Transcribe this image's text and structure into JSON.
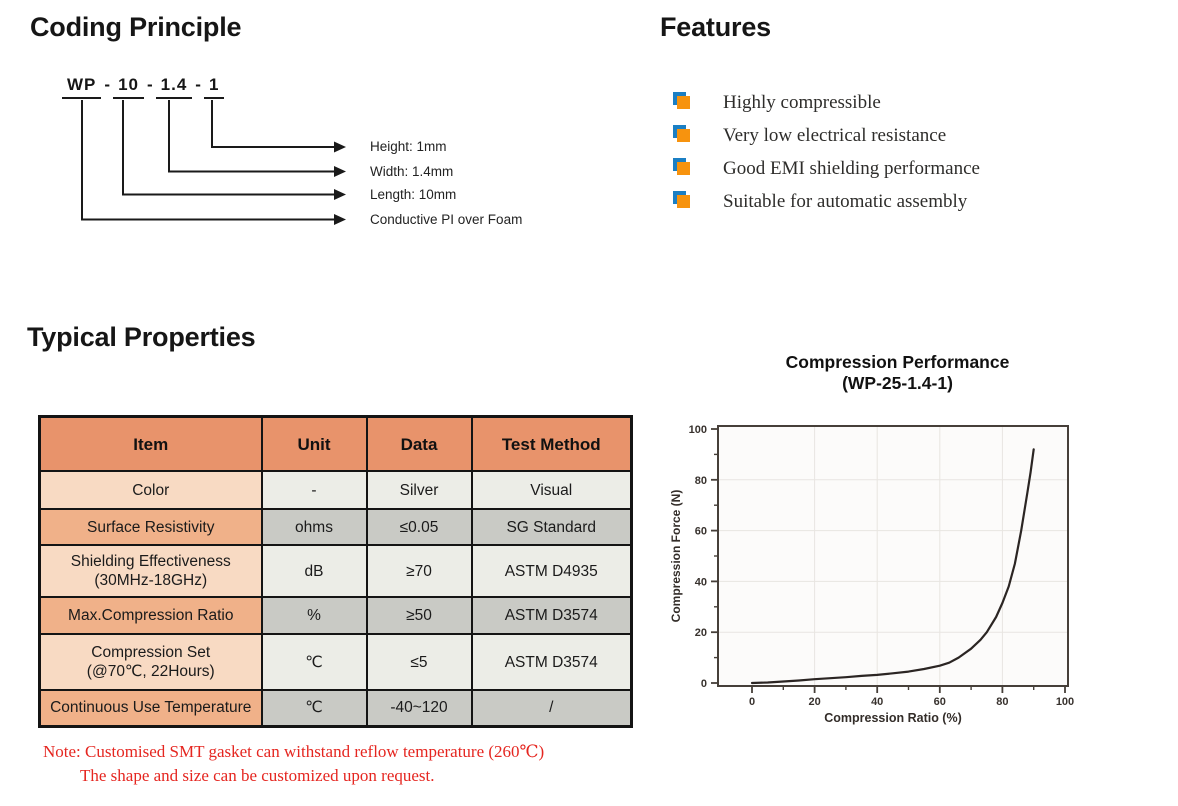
{
  "coding": {
    "title": "Coding Principle",
    "code_parts": [
      "WP",
      "10",
      "1.4",
      "1"
    ],
    "separator": "-",
    "labels": [
      "Height: 1mm",
      "Width: 1.4mm",
      "Length: 10mm",
      "Conductive PI over Foam"
    ]
  },
  "features": {
    "title": "Features",
    "items": [
      "Highly compressible",
      "Very low electrical resistance",
      "Good EMI shielding performance",
      "Suitable for automatic assembly"
    ]
  },
  "properties": {
    "title": "Typical Properties",
    "table": {
      "headers": [
        "Item",
        "Unit",
        "Data",
        "Test Method"
      ],
      "rows": [
        {
          "item_lines": [
            "Color"
          ],
          "unit": "-",
          "data": "Silver",
          "method": "Visual"
        },
        {
          "item_lines": [
            "Surface Resistivity"
          ],
          "unit": "ohms",
          "data": "≤0.05",
          "method": "SG Standard"
        },
        {
          "item_lines": [
            "Shielding Effectiveness",
            "(30MHz-18GHz)"
          ],
          "unit": "dB",
          "data": "≥70",
          "method": "ASTM D4935"
        },
        {
          "item_lines": [
            "Max.Compression Ratio"
          ],
          "unit": "%",
          "data": "≥50",
          "method": "ASTM D3574"
        },
        {
          "item_lines": [
            "Compression Set",
            "(@70℃, 22Hours)"
          ],
          "unit": "℃",
          "data": "≤5",
          "method": "ASTM D3574"
        },
        {
          "item_lines": [
            "Continuous Use Temperature"
          ],
          "unit": "℃",
          "data": "-40~120",
          "method": "/"
        }
      ]
    },
    "note_line1": "Note: Customised SMT gasket can withstand reflow temperature (260℃)",
    "note_line2": "The shape and size can be customized upon request."
  },
  "chart_data": {
    "type": "line",
    "title": "Compression Performance",
    "subtitle": "(WP-25-1.4-1)",
    "xlabel": "Compression Ratio (%)",
    "ylabel": "Compression Force (N)",
    "xlim": [
      0,
      100
    ],
    "ylim": [
      0,
      100
    ],
    "x_ticks": [
      0,
      20,
      40,
      60,
      80,
      100
    ],
    "y_ticks": [
      0,
      20,
      40,
      60,
      80,
      100
    ],
    "minor_tick_step": 10,
    "grid": true,
    "legend": "none",
    "series": [
      {
        "name": "WP-25-1.4-1",
        "points": [
          [
            0,
            0
          ],
          [
            5,
            0.2
          ],
          [
            10,
            0.6
          ],
          [
            15,
            1.0
          ],
          [
            20,
            1.5
          ],
          [
            25,
            1.9
          ],
          [
            30,
            2.3
          ],
          [
            35,
            2.8
          ],
          [
            40,
            3.2
          ],
          [
            45,
            3.8
          ],
          [
            50,
            4.5
          ],
          [
            55,
            5.5
          ],
          [
            60,
            6.8
          ],
          [
            63,
            8.0
          ],
          [
            66,
            10.0
          ],
          [
            70,
            13.5
          ],
          [
            73,
            17.0
          ],
          [
            75,
            20.0
          ],
          [
            78,
            26.0
          ],
          [
            80,
            31.5
          ],
          [
            82,
            38.0
          ],
          [
            84,
            47.0
          ],
          [
            86,
            60.0
          ],
          [
            88,
            75.0
          ],
          [
            89,
            83.0
          ],
          [
            90,
            92.0
          ]
        ]
      }
    ]
  },
  "colors": {
    "table_header_bg": "#E8936B",
    "table_item_light": "#F8DAC3",
    "table_item_dark": "#F0B189",
    "table_cell_light": "#ECEDE7",
    "table_cell_dark": "#C9CAC5",
    "note_red": "#E52620",
    "bullet_orange": "#F7930E",
    "bullet_blue": "#1B7FC4",
    "chart_line": "#2B2523"
  }
}
